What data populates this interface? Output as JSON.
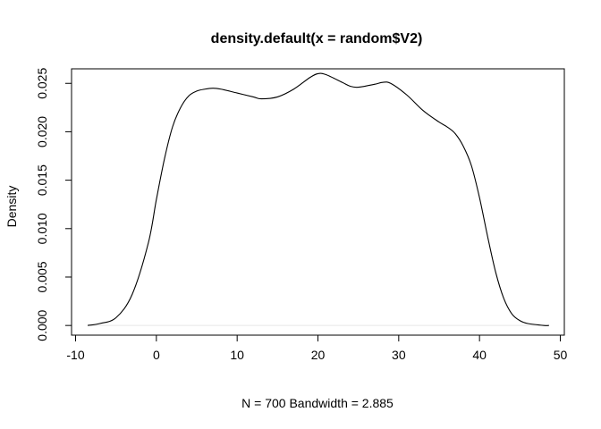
{
  "chart_data": {
    "type": "line",
    "title": "density.default(x = random$V2)",
    "xlabel": "N = 700   Bandwidth = 2.885",
    "ylabel": "Density",
    "xlim": [
      -10.5,
      50.5
    ],
    "ylim": [
      -0.001,
      0.0265
    ],
    "x_ticks": [
      -10,
      0,
      10,
      20,
      30,
      40,
      50
    ],
    "x_tick_labels": [
      "-10",
      "0",
      "10",
      "20",
      "30",
      "40",
      "50"
    ],
    "y_ticks": [
      0.0,
      0.005,
      0.01,
      0.015,
      0.02,
      0.025
    ],
    "y_tick_labels": [
      "0.000",
      "0.005",
      "0.010",
      "0.015",
      "0.020",
      "0.025"
    ],
    "grid": false,
    "series": [
      {
        "x": [
          -8.5,
          -7,
          -5,
          -3,
          -1,
          0,
          1,
          2,
          3,
          4,
          5,
          6,
          7,
          8,
          10,
          12,
          13,
          15,
          17,
          19,
          20,
          21,
          23,
          24,
          25,
          27,
          28,
          29,
          31,
          33,
          35,
          36,
          37,
          38,
          39,
          40,
          41,
          42,
          43,
          44,
          45,
          46,
          48,
          48.6
        ],
        "y": [
          0.0,
          0.0002,
          0.0008,
          0.0032,
          0.0085,
          0.013,
          0.0172,
          0.0205,
          0.0225,
          0.0237,
          0.0242,
          0.0244,
          0.0245,
          0.0244,
          0.024,
          0.0236,
          0.0234,
          0.0236,
          0.0244,
          0.0256,
          0.026,
          0.0259,
          0.0251,
          0.0247,
          0.0246,
          0.0249,
          0.0251,
          0.025,
          0.0238,
          0.0222,
          0.021,
          0.0205,
          0.0198,
          0.0185,
          0.0165,
          0.0132,
          0.0092,
          0.0055,
          0.0028,
          0.0012,
          0.0005,
          0.0002,
          0.0,
          0.0
        ]
      }
    ]
  }
}
